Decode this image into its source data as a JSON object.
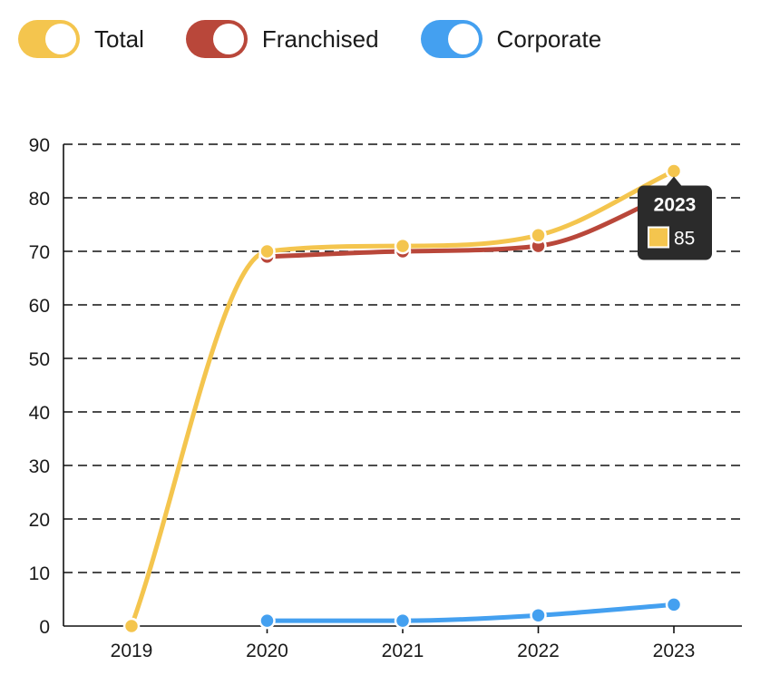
{
  "legend": [
    {
      "label": "Total",
      "color": "#F4C54E"
    },
    {
      "label": "Franchised",
      "color": "#B9473A"
    },
    {
      "label": "Corporate",
      "color": "#44A0F0"
    }
  ],
  "chart_data": {
    "type": "line",
    "title": "",
    "xlabel": "",
    "ylabel": "",
    "categories": [
      "2019",
      "2020",
      "2021",
      "2022",
      "2023"
    ],
    "ylim": [
      0,
      90
    ],
    "yticks": [
      0,
      10,
      20,
      30,
      40,
      50,
      60,
      70,
      80,
      90
    ],
    "grid": true,
    "legend_position": "top-left",
    "series": [
      {
        "name": "Total",
        "color": "#F4C54E",
        "values": [
          0,
          70,
          71,
          73,
          85
        ]
      },
      {
        "name": "Franchised",
        "color": "#B9473A",
        "values": [
          null,
          69,
          70,
          71,
          81
        ]
      },
      {
        "name": "Corporate",
        "color": "#44A0F0",
        "values": [
          null,
          1,
          1,
          2,
          4
        ]
      }
    ]
  },
  "tooltip": {
    "title": "2023",
    "value": "85",
    "color": "#F4C54E"
  }
}
